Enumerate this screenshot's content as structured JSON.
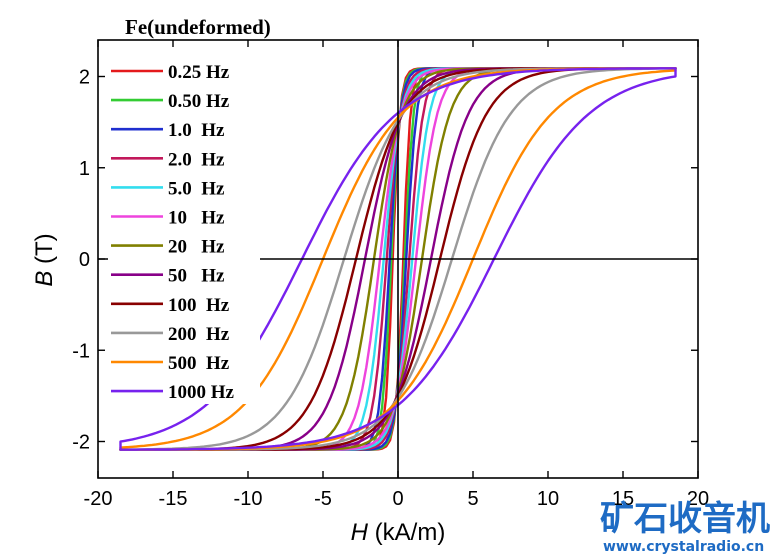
{
  "chart_data": {
    "type": "line",
    "title": "Fe(undeformed)",
    "xlabel_italic": "H",
    "xlabel_rest": " (kA/m)",
    "ylabel_italic": "B",
    "ylabel_rest": " (T)",
    "xlim": [
      -20,
      20
    ],
    "ylim": [
      -2.4,
      2.4
    ],
    "xticks": [
      -20,
      -15,
      -10,
      -5,
      0,
      5,
      10,
      15,
      20
    ],
    "yticks": [
      -2,
      -1,
      0,
      1,
      2
    ],
    "xtick_labels": [
      "-20",
      "-15",
      "-10",
      "-5",
      "0",
      "5",
      "10",
      "15",
      "20"
    ],
    "ytick_labels": [
      "-2",
      "-1",
      "0",
      "1",
      "2"
    ],
    "Hmax": 18.5,
    "Bmax": 2.09,
    "legend_position": "left",
    "series": [
      {
        "name": "0.25 Hz",
        "color": "#e41a1c",
        "coercivity_kA_per_m": 0.35,
        "remanence_T": 1.3
      },
      {
        "name": "0.50 Hz",
        "color": "#33cc33",
        "coercivity_kA_per_m": 0.45,
        "remanence_T": 1.35
      },
      {
        "name": "1.0  Hz",
        "color": "#1f2fcf",
        "coercivity_kA_per_m": 0.55,
        "remanence_T": 1.38
      },
      {
        "name": "2.0  Hz",
        "color": "#c2185b",
        "coercivity_kA_per_m": 0.75,
        "remanence_T": 1.4
      },
      {
        "name": "5.0  Hz",
        "color": "#33ddee",
        "coercivity_kA_per_m": 0.95,
        "remanence_T": 1.42
      },
      {
        "name": "10   Hz",
        "color": "#ee44dd",
        "coercivity_kA_per_m": 1.2,
        "remanence_T": 1.44
      },
      {
        "name": "20   Hz",
        "color": "#808000",
        "coercivity_kA_per_m": 1.6,
        "remanence_T": 1.46
      },
      {
        "name": "50   Hz",
        "color": "#880088",
        "coercivity_kA_per_m": 2.2,
        "remanence_T": 1.48
      },
      {
        "name": "100  Hz",
        "color": "#880000",
        "coercivity_kA_per_m": 2.8,
        "remanence_T": 1.5
      },
      {
        "name": "200  Hz",
        "color": "#999999",
        "coercivity_kA_per_m": 3.6,
        "remanence_T": 1.52
      },
      {
        "name": "500  Hz",
        "color": "#ff8800",
        "coercivity_kA_per_m": 5.0,
        "remanence_T": 1.55
      },
      {
        "name": "1000 Hz",
        "color": "#7722ee",
        "coercivity_kA_per_m": 6.4,
        "remanence_T": 1.6
      }
    ]
  },
  "watermark": {
    "chinese": "矿石收音机",
    "url": "www.crystalradio.cn"
  }
}
